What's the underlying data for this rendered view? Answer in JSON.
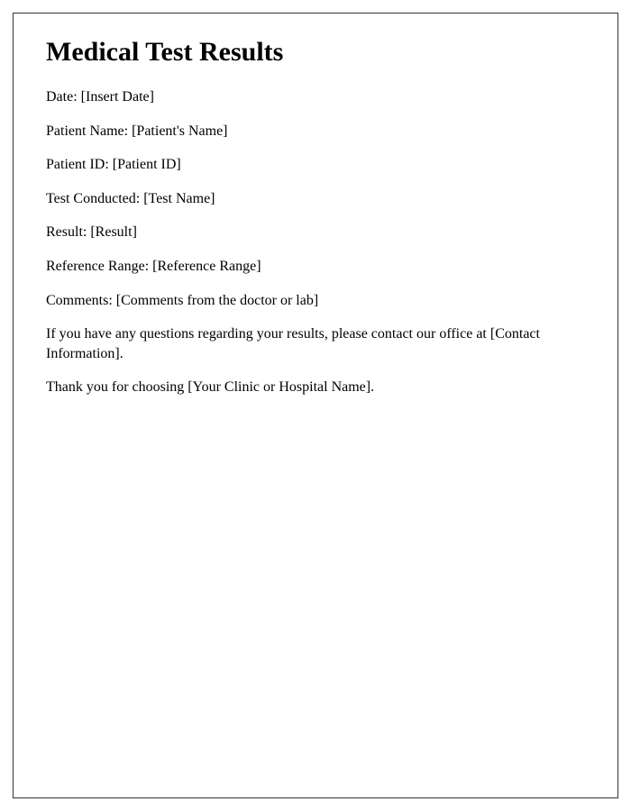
{
  "document": {
    "title": "Medical Test Results",
    "fields": {
      "date": {
        "label": "Date: ",
        "value": "[Insert Date]"
      },
      "patientName": {
        "label": "Patient Name: ",
        "value": "[Patient's Name]"
      },
      "patientId": {
        "label": "Patient ID: ",
        "value": "[Patient ID]"
      },
      "testConducted": {
        "label": "Test Conducted: ",
        "value": "[Test Name]"
      },
      "result": {
        "label": "Result: ",
        "value": "[Result]"
      },
      "referenceRange": {
        "label": "Reference Range: ",
        "value": "[Reference Range]"
      },
      "comments": {
        "label": "Comments: ",
        "value": "[Comments from the doctor or lab]"
      }
    },
    "contactParagraph": "If you have any questions regarding your results, please contact our office at [Contact Information].",
    "thankYouParagraph": "Thank you for choosing [Your Clinic or Hospital Name]."
  },
  "styling": {
    "background_color": "#ffffff",
    "border_color": "#333333",
    "text_color": "#000000",
    "title_fontsize": 30,
    "body_fontsize": 16,
    "font_family": "Times New Roman"
  }
}
